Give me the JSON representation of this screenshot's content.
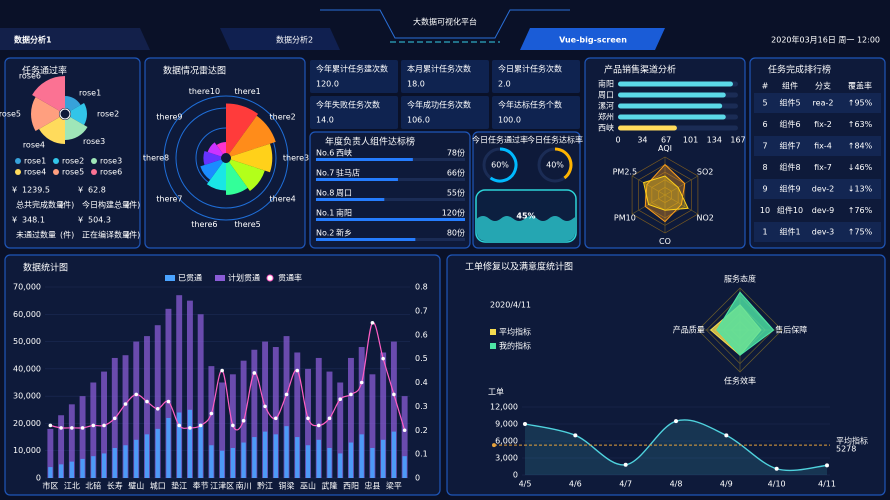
{
  "header": {
    "title": "大数据可视化平台",
    "tabs": [
      "数据分析1",
      "数据分析2"
    ],
    "subtitle": "Vue-big-screen",
    "datetime": "2020年03月16日 周一 12:00"
  },
  "stats": [
    {
      "currency": "¥",
      "value": "1239.5",
      "label": "总共完成数量",
      "unit": "(件)"
    },
    {
      "currency": "¥",
      "value": "62.8",
      "label": "今日构建总量",
      "unit": "(件)"
    },
    {
      "currency": "¥",
      "value": "348.1",
      "label": "未通过数量",
      "unit": "(件)"
    },
    {
      "currency": "¥",
      "value": "504.3",
      "label": "正在编译数量",
      "unit": "(件)"
    }
  ],
  "cards": [
    {
      "label": "今年累计任务建次数",
      "value": "120.0"
    },
    {
      "label": "本月累计任务次数",
      "value": "18.0"
    },
    {
      "label": "今日累计任务次数",
      "value": "2.0"
    },
    {
      "label": "今年失败任务次数",
      "value": "14.0"
    },
    {
      "label": "今年成功任务次数",
      "value": "106.0"
    },
    {
      "label": "今年达标任务个数",
      "value": "100.0"
    }
  ],
  "ranking": {
    "title": "任务完成排行榜",
    "columns": [
      "#",
      "组件",
      "分支",
      "覆盖率"
    ],
    "rows": [
      [
        "5",
        "组件5",
        "rea-2",
        "↑95%"
      ],
      [
        "6",
        "组件6",
        "fix-2",
        "↑63%"
      ],
      [
        "7",
        "组件7",
        "fix-4",
        "↑84%"
      ],
      [
        "8",
        "组件8",
        "fix-7",
        "↓46%"
      ],
      [
        "9",
        "组件9",
        "dev-2",
        "↓13%"
      ],
      [
        "10",
        "组件10",
        "dev-9",
        "↑76%"
      ],
      [
        "1",
        "组件1",
        "dev-3",
        "↑75%"
      ]
    ]
  },
  "chart_data": [
    {
      "type": "rose",
      "title": "任务通过率",
      "categories": [
        "rose1",
        "rose2",
        "rose3",
        "rose4",
        "rose5",
        "rose6"
      ],
      "values": [
        12,
        16,
        20,
        24,
        28,
        32
      ],
      "colors": [
        "#37a2da",
        "#32c5e9",
        "#9fe6b8",
        "#ffdb5c",
        "#ff9f7f",
        "#fb7293"
      ]
    },
    {
      "type": "polar-bar",
      "title": "数据情况雷达图",
      "categories": [
        "there1",
        "there2",
        "there3",
        "there4",
        "there5",
        "there6",
        "there7",
        "there8",
        "there9",
        "there10"
      ],
      "values": [
        9,
        8.6,
        7.5,
        6.5,
        5.8,
        5,
        4,
        3.2,
        2.6,
        2
      ],
      "rlim": [
        0,
        10
      ],
      "colors": [
        "#ff3b3b",
        "#ff8c1a",
        "#ffd11a",
        "#b3ff1a",
        "#33ff99",
        "#1ae6e6",
        "#1a8cff",
        "#6633ff",
        "#cc33ff",
        "#ff33cc"
      ]
    },
    {
      "type": "ranking-bar",
      "title": "年度负责人组件达标榜",
      "ranks": [
        "No.6",
        "No.7",
        "No.8",
        "No.1",
        "No.2"
      ],
      "categories": [
        "西峡",
        "驻马店",
        "周口",
        "南阳",
        "新乡"
      ],
      "values": [
        78,
        66,
        55,
        120,
        80
      ],
      "value_labels": [
        "78份",
        "66份",
        "55份",
        "120份",
        "80份"
      ],
      "color": "#257dff"
    },
    {
      "type": "gauge",
      "categories": [
        "今日任务通过率",
        "今日任务达标率"
      ],
      "values": [
        60,
        40
      ],
      "value_labels": [
        "60%",
        "40%"
      ],
      "colors": [
        "#00baff",
        "#ffb400"
      ]
    },
    {
      "type": "liquid",
      "values": [
        45
      ],
      "value_labels": [
        "45%"
      ],
      "color": "#2dd4d8"
    },
    {
      "type": "bar",
      "orientation": "horizontal",
      "title": "产品销售渠道分析",
      "categories": [
        "南阳",
        "周口",
        "漯河",
        "郑州",
        "西峡"
      ],
      "values": [
        160,
        150,
        145,
        150,
        82
      ],
      "xlim": [
        0,
        167
      ],
      "xticks": [
        0,
        34,
        67,
        101,
        134,
        167
      ],
      "colors": [
        "#5cd9e8",
        "#5cd9e8",
        "#5cd9e8",
        "#5cd9e8",
        "#ffdb5c"
      ]
    },
    {
      "type": "radar",
      "indicators": [
        "AQI",
        "SO2",
        "NO2",
        "CO",
        "PM10",
        "PM2.5"
      ],
      "rlim": [
        0,
        100
      ],
      "series": [
        {
          "color": "#ff9f1a",
          "values": [
            80,
            60,
            50,
            70,
            60,
            55
          ]
        },
        {
          "color": "#ffd11a",
          "values": [
            50,
            40,
            70,
            40,
            50,
            65
          ]
        }
      ]
    },
    {
      "type": "bar-line",
      "title": "数据统计图",
      "categories": [
        "市区",
        null,
        "江北",
        null,
        "北碚",
        null,
        "长寿",
        null,
        "璧山",
        null,
        "城口",
        null,
        "垫江",
        null,
        "奉节",
        null,
        "江津区",
        null,
        "南川",
        null,
        "黔江",
        null,
        "铜梁",
        null,
        "巫山",
        null,
        "武隆",
        null,
        "西阳",
        null,
        "忠县",
        null,
        "梁平",
        null
      ],
      "ylim": [
        0,
        70000
      ],
      "yticks": [
        0,
        {
          "value": 10000,
          "label": "10,000"
        },
        {
          "value": 20000,
          "label": "20,000"
        },
        {
          "value": 30000,
          "label": "30,000"
        },
        {
          "value": 40000,
          "label": "40,000"
        },
        {
          "value": 50000,
          "label": "50,000"
        },
        {
          "value": 60000,
          "label": "60,000"
        },
        {
          "value": 70000,
          "label": "70,000"
        }
      ],
      "y2lim": [
        0,
        0.8
      ],
      "y2ticks": [
        0,
        0.1,
        0.2,
        0.3,
        0.4,
        0.5,
        0.6,
        0.7,
        0.8
      ],
      "series": [
        {
          "name": "已贯通",
          "color": "#4aa3ff",
          "values": [
            4000,
            5000,
            6000,
            7000,
            8000,
            9000,
            11000,
            12000,
            14000,
            16000,
            18000,
            22000,
            24000,
            25000,
            20000,
            12000,
            10000,
            11000,
            13000,
            15000,
            17000,
            16000,
            19000,
            15000,
            12000,
            14000,
            11000,
            9000,
            13000,
            16000,
            11000,
            14000,
            17000,
            8000
          ]
        },
        {
          "name": "计划贯通",
          "color": "#8a5cd6",
          "values": [
            18000,
            23000,
            27000,
            30000,
            35000,
            39000,
            44000,
            45000,
            50000,
            52000,
            56000,
            62000,
            67000,
            65000,
            60000,
            41000,
            35000,
            38000,
            43000,
            47000,
            50000,
            48000,
            52000,
            46000,
            40000,
            44000,
            39000,
            35000,
            44000,
            48000,
            38000,
            46000,
            50000,
            30000
          ]
        },
        {
          "name": "贯通率",
          "color": "#ff5ec4",
          "axis": "y2",
          "values": [
            0.22,
            0.21,
            0.21,
            0.21,
            0.22,
            0.22,
            0.25,
            0.31,
            0.35,
            0.32,
            0.29,
            0.32,
            0.22,
            0.21,
            0.22,
            0.27,
            0.45,
            0.22,
            0.24,
            0.44,
            0.3,
            0.25,
            0.35,
            0.45,
            0.25,
            0.22,
            0.25,
            0.33,
            0.35,
            0.4,
            0.65,
            0.5,
            0.35,
            0.2
          ]
        }
      ]
    },
    {
      "type": "radar",
      "title": "工单修复以及满意度统计图",
      "subtitle": "2020/4/11",
      "indicators": [
        "服务态度",
        "售后保障",
        "任务效率",
        "产品质量"
      ],
      "rlim": [
        0,
        100
      ],
      "series": [
        {
          "name": "平均指标",
          "color": "#f5dc50",
          "values": [
            60,
            50,
            60,
            70
          ]
        },
        {
          "name": "我的指标",
          "color": "#4ee6a6",
          "values": [
            90,
            80,
            60,
            55
          ]
        }
      ]
    },
    {
      "type": "line",
      "ylabel": "工单",
      "categories": [
        "4/5",
        "4/6",
        "4/7",
        "4/8",
        "4/9",
        "4/10",
        "4/11"
      ],
      "values": [
        9000,
        7000,
        1800,
        9500,
        7000,
        1100,
        1700
      ],
      "color": "#4fd2dd",
      "ylim": [
        0,
        12000
      ],
      "yticks": [
        0,
        {
          "value": 3000,
          "label": "3,000"
        },
        {
          "value": 6000,
          "label": "6,000"
        },
        {
          "value": 9000,
          "label": "9,000"
        },
        {
          "value": 12000,
          "label": "12,000"
        }
      ],
      "markline": {
        "name": "平均指标",
        "value": 5278,
        "color": "#e6a23c"
      }
    }
  ]
}
